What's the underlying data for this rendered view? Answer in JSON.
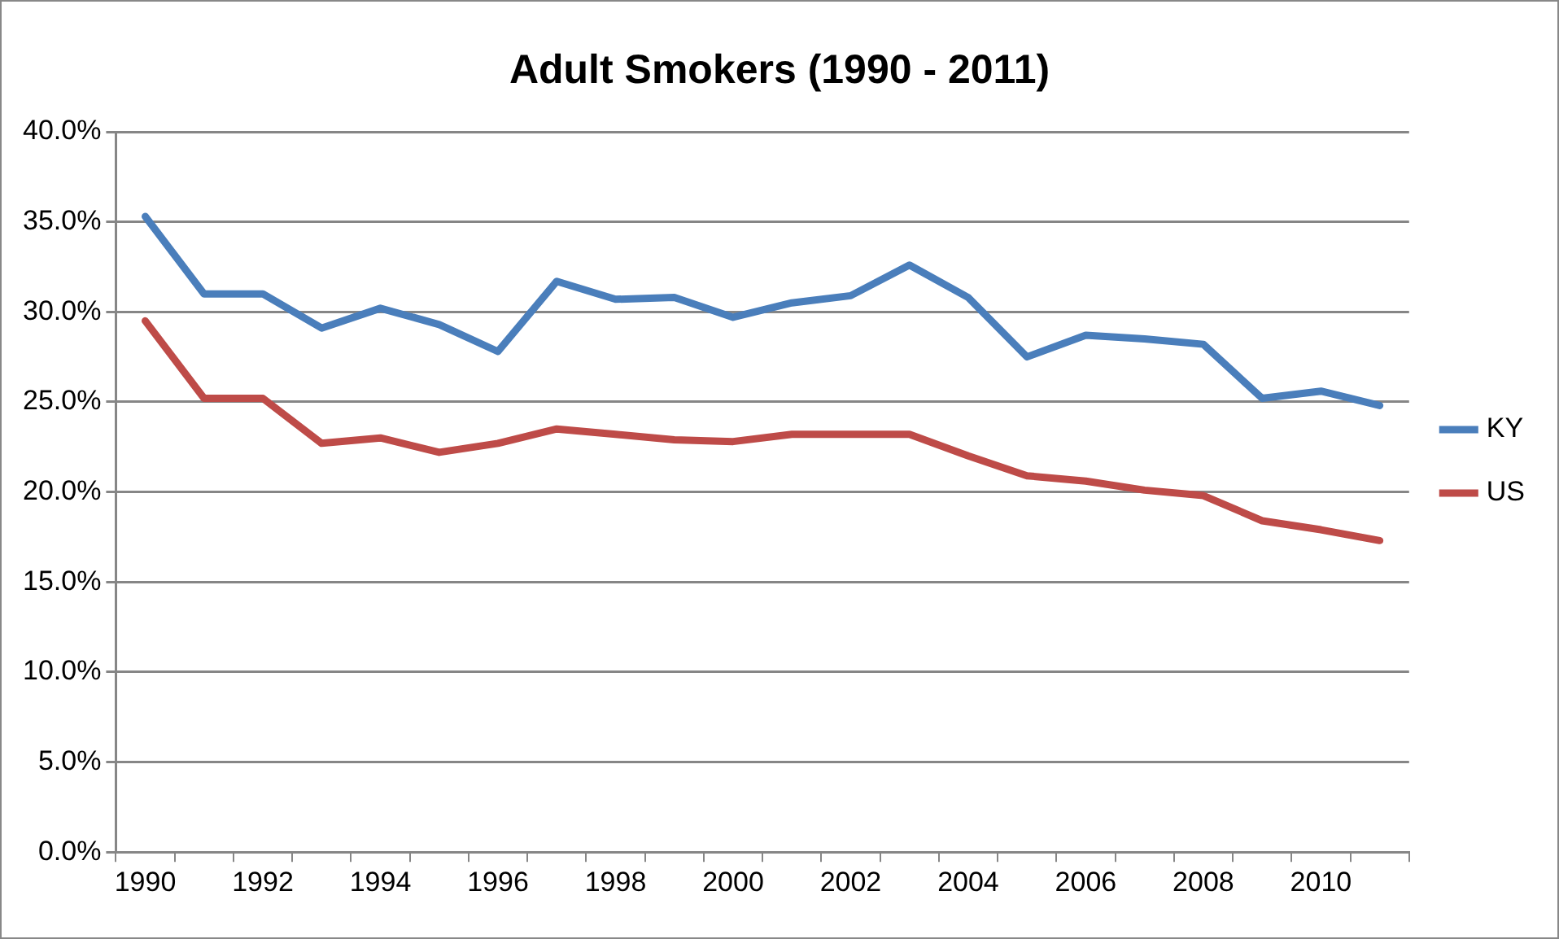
{
  "chart_data": {
    "type": "line",
    "title": "Adult Smokers (1990 - 2011)",
    "categories": [
      "1990",
      null,
      "1992",
      null,
      "1994",
      null,
      "1996",
      null,
      "1998",
      null,
      "2000",
      null,
      "2002",
      null,
      "2004",
      null,
      "2006",
      null,
      "2008",
      null,
      "2010",
      null
    ],
    "series": [
      {
        "name": "KY",
        "color": "#4a7ebb",
        "values": [
          35.3,
          31.0,
          31.0,
          29.1,
          30.2,
          29.3,
          27.8,
          31.7,
          30.7,
          30.8,
          29.7,
          30.5,
          30.9,
          32.6,
          30.8,
          27.5,
          28.7,
          28.5,
          28.2,
          25.2,
          25.6,
          24.8
        ]
      },
      {
        "name": "US",
        "color": "#be4b48",
        "values": [
          29.5,
          25.2,
          25.2,
          22.7,
          23.0,
          22.2,
          22.7,
          23.5,
          23.2,
          22.9,
          22.8,
          23.2,
          23.2,
          23.2,
          22.0,
          20.9,
          20.6,
          20.1,
          19.8,
          18.4,
          17.9,
          17.3
        ]
      }
    ],
    "ylim": [
      0,
      40
    ],
    "yticks": [
      {
        "value": 0,
        "label": "0.0%"
      },
      {
        "value": 5,
        "label": "5.0%"
      },
      {
        "value": 10,
        "label": "10.0%"
      },
      {
        "value": 15,
        "label": "15.0%"
      },
      {
        "value": 20,
        "label": "20.0%"
      },
      {
        "value": 25,
        "label": "25.0%"
      },
      {
        "value": 30,
        "label": "30.0%"
      },
      {
        "value": 35,
        "label": "35.0%"
      },
      {
        "value": 40,
        "label": "40.0%"
      }
    ],
    "grid": "y",
    "legend": "right",
    "marker": "none",
    "line_style": "solid"
  }
}
